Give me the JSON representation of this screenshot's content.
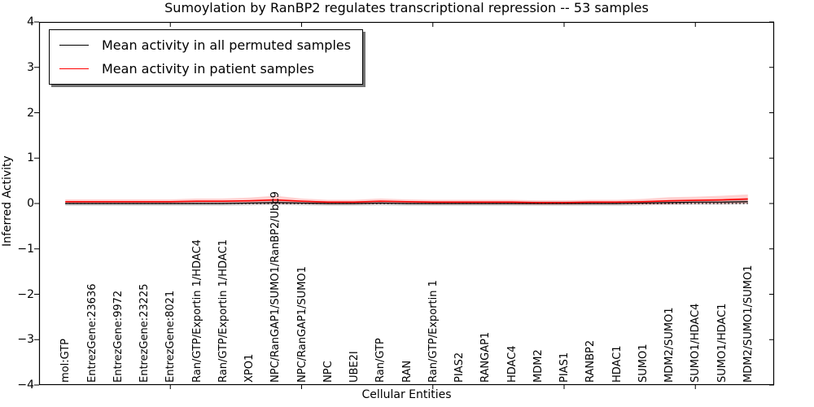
{
  "figure": {
    "title": "Sumoylation by RanBP2 regulates transcriptional repression -- 53 samples"
  },
  "legend": {
    "items": [
      {
        "label": "Mean activity in all permuted samples",
        "color": "#000000"
      },
      {
        "label": "Mean activity in patient samples",
        "color": "#ff0000"
      }
    ]
  },
  "chart_data": {
    "type": "line",
    "title": "Sumoylation by RanBP2 regulates transcriptional repression -- 53 samples",
    "xlabel": "Cellular Entities",
    "ylabel": "Inferred Activity",
    "ylim": [
      -4,
      4
    ],
    "yticks": [
      4,
      3,
      2,
      1,
      0,
      -1,
      -2,
      -3,
      -4
    ],
    "xticks_major": [
      5,
      10,
      15,
      20,
      25
    ],
    "grid": false,
    "legend_position": "upper left",
    "zero_line": {
      "style": "dotted",
      "color": "#000000",
      "y": 0
    },
    "categories": [
      "mol:GTP",
      "EntrezGene:23636",
      "EntrezGene:9972",
      "EntrezGene:23225",
      "EntrezGene:8021",
      "Ran/GTP/Exportin 1/HDAC4",
      "Ran/GTP/Exportin 1/HDAC1",
      "XPO1",
      "NPC/RanGAP1/SUMO1/RanBP2/Ubc9",
      "NPC/RanGAP1/SUMO1",
      "NPC",
      "UBE2I",
      "Ran/GTP",
      "RAN",
      "Ran/GTP/Exportin 1",
      "PIAS2",
      "RANGAP1",
      "HDAC4",
      "MDM2",
      "PIAS1",
      "RANBP2",
      "HDAC1",
      "SUMO1",
      "MDM2/SUMO1",
      "SUMO1/HDAC4",
      "SUMO1/HDAC1",
      "MDM2/SUMO1/SUMO1"
    ],
    "series": [
      {
        "name": "Mean activity in all permuted samples",
        "color": "#000000",
        "values": [
          0,
          0,
          0,
          0,
          0,
          0,
          0,
          0.01,
          0.02,
          0.01,
          0,
          0,
          0.01,
          0,
          0,
          0,
          0,
          0,
          0,
          0,
          0,
          0,
          0.01,
          0.02,
          0.03,
          0.03,
          0.04
        ]
      },
      {
        "name": "Mean activity in patient samples",
        "color": "#ff0000",
        "values": [
          0.04,
          0.04,
          0.04,
          0.04,
          0.04,
          0.05,
          0.05,
          0.06,
          0.08,
          0.05,
          0.03,
          0.03,
          0.05,
          0.04,
          0.03,
          0.03,
          0.03,
          0.03,
          0.02,
          0.02,
          0.03,
          0.03,
          0.04,
          0.06,
          0.07,
          0.08,
          0.1
        ]
      }
    ],
    "bands": [
      {
        "name": "permuted-std-band",
        "color": "#999999",
        "opacity": 0.45,
        "center_values": [
          0,
          0,
          0,
          0,
          0,
          0,
          0,
          0.01,
          0.02,
          0.01,
          0,
          0,
          0.01,
          0,
          0,
          0,
          0,
          0,
          0,
          0,
          0,
          0,
          0.01,
          0.02,
          0.03,
          0.03,
          0.04
        ],
        "half_widths": [
          0.05,
          0.05,
          0.05,
          0.05,
          0.05,
          0.05,
          0.05,
          0.05,
          0.05,
          0.05,
          0.05,
          0.05,
          0.05,
          0.05,
          0.05,
          0.05,
          0.05,
          0.05,
          0.05,
          0.05,
          0.05,
          0.05,
          0.05,
          0.05,
          0.05,
          0.05,
          0.05
        ]
      },
      {
        "name": "patient-std-band",
        "color": "#ff0000",
        "opacity": 0.18,
        "center_values": [
          0.04,
          0.04,
          0.04,
          0.04,
          0.04,
          0.05,
          0.05,
          0.06,
          0.08,
          0.05,
          0.03,
          0.03,
          0.05,
          0.04,
          0.03,
          0.03,
          0.03,
          0.03,
          0.02,
          0.02,
          0.03,
          0.03,
          0.04,
          0.06,
          0.07,
          0.08,
          0.1
        ],
        "half_widths": [
          0.05,
          0.05,
          0.05,
          0.05,
          0.05,
          0.06,
          0.06,
          0.07,
          0.09,
          0.06,
          0.05,
          0.05,
          0.06,
          0.05,
          0.05,
          0.05,
          0.05,
          0.05,
          0.05,
          0.05,
          0.05,
          0.05,
          0.06,
          0.08,
          0.08,
          0.09,
          0.1
        ]
      }
    ]
  }
}
